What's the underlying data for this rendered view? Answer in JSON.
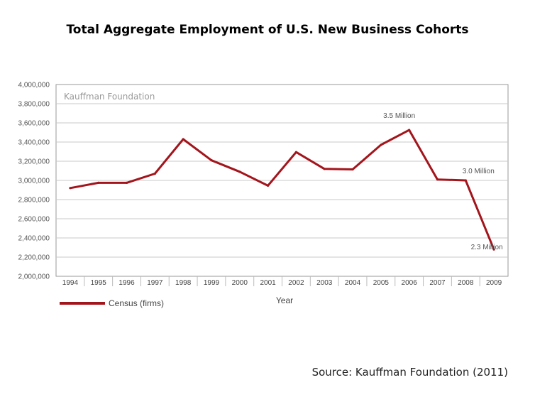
{
  "chart_data": {
    "type": "line",
    "title": "Total Aggregate Employment of U.S. New Business Cohorts",
    "watermark": "Kauffman Foundation",
    "xlabel": "Year",
    "ylabel": "",
    "ylim": [
      2000000,
      4000000
    ],
    "y_ticks": [
      2000000,
      2200000,
      2400000,
      2600000,
      2800000,
      3000000,
      3200000,
      3400000,
      3600000,
      3800000,
      4000000
    ],
    "y_tick_labels": [
      "2,000,000",
      "2,200,000",
      "2,400,000",
      "2,600,000",
      "2,800,000",
      "3,000,000",
      "3,200,000",
      "3,400,000",
      "3,600,000",
      "3,800,000",
      "4,000,000"
    ],
    "categories": [
      "1994",
      "1995",
      "1996",
      "1997",
      "1998",
      "1999",
      "2000",
      "2001",
      "2002",
      "2003",
      "2004",
      "2005",
      "2006",
      "2007",
      "2008",
      "2009"
    ],
    "series": [
      {
        "name": "Census (firms)",
        "color": "#a3151c",
        "values": [
          2920000,
          2975000,
          2975000,
          3070000,
          3430000,
          3210000,
          3090000,
          2945000,
          3295000,
          3120000,
          3115000,
          3370000,
          3525000,
          3010000,
          3000000,
          2280000
        ]
      }
    ],
    "annotations": [
      {
        "text": "3.5 Million",
        "x": "2006",
        "y": 3525000
      },
      {
        "text": "3.0 Million",
        "x": "2008",
        "y": 3000000
      },
      {
        "text": "2.3 Million",
        "x": "2009",
        "y": 2280000
      }
    ],
    "grid": "horizontal",
    "legend_position": "bottom-left"
  },
  "source": "Source: Kauffman Foundation (2011)"
}
